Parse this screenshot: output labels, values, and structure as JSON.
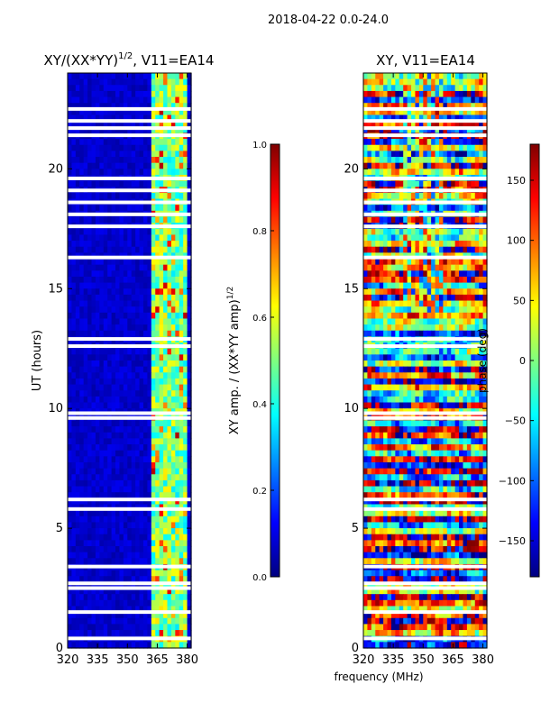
{
  "figure": {
    "suptitle": "2018-04-22 0.0-24.0",
    "xlabel_shared": "frequency (MHz)"
  },
  "chart_data": [
    {
      "type": "heatmap",
      "title": "XY/(XX*YY)",
      "title_exp": "1/2",
      "title_tail": ", V11=EA14",
      "ylabel": "UT (hours)",
      "xlim": [
        320,
        382
      ],
      "ylim": [
        0,
        24
      ],
      "xticks": [
        320,
        335,
        350,
        365,
        380
      ],
      "yticks": [
        0,
        5,
        10,
        15,
        20
      ],
      "colorbar": {
        "label": "XY amp. / (XX*YY amp)",
        "label_exp": "1/2",
        "range": [
          0.0,
          1.0
        ],
        "ticks": [
          "0.0",
          "0.2",
          "0.4",
          "0.6",
          "0.8",
          "1.0"
        ],
        "colormap": "jet"
      },
      "blank_rows_ut": [
        0.4,
        1.5,
        2.5,
        2.7,
        3.4,
        5.8,
        6.2,
        9.6,
        9.8,
        12.6,
        12.9,
        16.3,
        17.6,
        18.1,
        18.6,
        19.1,
        19.6,
        21.4,
        21.7,
        22.0,
        22.5
      ],
      "bright_band_mhz": [
        363,
        380
      ]
    },
    {
      "type": "heatmap",
      "title": "XY, V11=EA14",
      "xlim": [
        320,
        382
      ],
      "ylim": [
        0,
        24
      ],
      "xticks": [
        320,
        335,
        350,
        365,
        380
      ],
      "yticks": [
        0,
        5,
        10,
        15,
        20
      ],
      "colorbar": {
        "label": "phase (deg)",
        "range": [
          -180,
          180
        ],
        "ticks": [
          "150",
          "100",
          "50",
          "0",
          "−50",
          "−100",
          "−150"
        ],
        "colormap": "jet"
      },
      "blank_rows_ut": [
        0.4,
        1.5,
        2.5,
        2.7,
        3.4,
        5.8,
        6.2,
        9.6,
        9.8,
        12.6,
        12.9,
        16.3,
        17.6,
        18.1,
        18.6,
        19.1,
        19.6,
        21.4,
        21.7,
        22.0,
        22.5
      ]
    }
  ]
}
